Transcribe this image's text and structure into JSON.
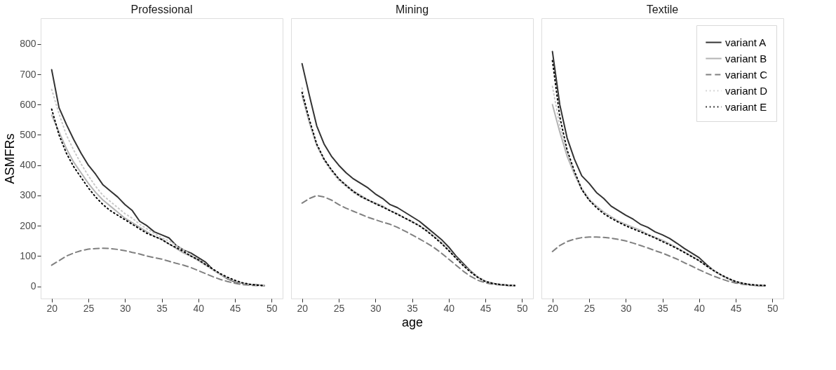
{
  "chart_data": [
    {
      "type": "line",
      "title": "Professional",
      "ylabel": "ASMFRs",
      "x": [
        20,
        21,
        22,
        23,
        24,
        25,
        26,
        27,
        28,
        29,
        30,
        31,
        32,
        33,
        34,
        35,
        36,
        37,
        38,
        39,
        40,
        41,
        42,
        43,
        44,
        45,
        46,
        47,
        48,
        49
      ],
      "xlim": [
        18.5,
        51.5
      ],
      "xticks": [
        20,
        25,
        30,
        35,
        40,
        45,
        50
      ],
      "ylim": [
        -40,
        885
      ],
      "yticks": [
        0,
        100,
        200,
        300,
        400,
        500,
        600,
        700,
        800
      ],
      "grid": false,
      "legend": false,
      "series": [
        {
          "color": "#333333",
          "line_style": "solid",
          "values": [
            715,
            590,
            535,
            485,
            440,
            400,
            370,
            335,
            315,
            295,
            270,
            250,
            215,
            200,
            180,
            170,
            160,
            135,
            120,
            110,
            95,
            80,
            55,
            40,
            25,
            15,
            10,
            7,
            5,
            3
          ]
        },
        {
          "color": "#b3b3b3",
          "line_style": "solid",
          "values": [
            565,
            510,
            455,
            410,
            375,
            340,
            310,
            285,
            265,
            245,
            225,
            210,
            195,
            180,
            165,
            155,
            140,
            125,
            110,
            100,
            85,
            70,
            55,
            40,
            27,
            17,
            10,
            6,
            4,
            3
          ]
        },
        {
          "color": "#808080",
          "line_style": "dashed",
          "values": [
            70,
            85,
            100,
            110,
            118,
            123,
            125,
            126,
            125,
            122,
            118,
            112,
            107,
            100,
            95,
            90,
            83,
            76,
            70,
            62,
            52,
            42,
            32,
            23,
            16,
            10,
            6,
            4,
            3,
            2
          ]
        },
        {
          "color": "#c8c8c8",
          "line_style": "dotted",
          "values": [
            650,
            570,
            500,
            450,
            405,
            365,
            330,
            300,
            280,
            260,
            240,
            225,
            205,
            190,
            175,
            160,
            150,
            135,
            120,
            105,
            90,
            72,
            55,
            40,
            28,
            18,
            11,
            7,
            4,
            3
          ]
        },
        {
          "color": "#000000",
          "line_style": "dotted",
          "values": [
            585,
            500,
            440,
            395,
            360,
            325,
            295,
            270,
            250,
            235,
            220,
            205,
            190,
            175,
            165,
            155,
            140,
            128,
            115,
            100,
            88,
            72,
            57,
            42,
            30,
            20,
            12,
            7,
            4,
            3
          ]
        }
      ]
    },
    {
      "type": "line",
      "title": "Mining",
      "xlabel": "age",
      "tick_labels": "x",
      "x": [
        20,
        21,
        22,
        23,
        24,
        25,
        26,
        27,
        28,
        29,
        30,
        31,
        32,
        33,
        34,
        35,
        36,
        37,
        38,
        39,
        40,
        41,
        42,
        43,
        44,
        45,
        46,
        47,
        48,
        49
      ],
      "xlim": [
        18.5,
        51.5
      ],
      "xticks": [
        20,
        25,
        30,
        35,
        40,
        45,
        50
      ],
      "ylim": [
        -40,
        885
      ],
      "grid": false,
      "legend": false,
      "series": [
        {
          "color": "#333333",
          "line_style": "solid",
          "values": [
            735,
            630,
            530,
            470,
            430,
            400,
            375,
            355,
            340,
            325,
            305,
            290,
            270,
            260,
            245,
            230,
            215,
            195,
            175,
            155,
            130,
            100,
            75,
            50,
            30,
            17,
            10,
            6,
            4,
            3
          ]
        },
        {
          "color": "#b3b3b3",
          "line_style": "solid",
          "values": [
            630,
            540,
            465,
            420,
            385,
            355,
            335,
            315,
            300,
            285,
            275,
            265,
            250,
            240,
            225,
            215,
            200,
            185,
            165,
            145,
            120,
            95,
            70,
            48,
            30,
            17,
            10,
            6,
            4,
            3
          ]
        },
        {
          "color": "#808080",
          "line_style": "dashed",
          "values": [
            275,
            290,
            300,
            295,
            285,
            270,
            258,
            248,
            238,
            228,
            220,
            212,
            205,
            195,
            183,
            170,
            157,
            143,
            128,
            110,
            90,
            70,
            50,
            33,
            20,
            12,
            7,
            5,
            3,
            2
          ]
        },
        {
          "color": "#c8c8c8",
          "line_style": "dotted",
          "values": [
            655,
            545,
            465,
            415,
            380,
            350,
            330,
            310,
            295,
            283,
            272,
            262,
            250,
            238,
            225,
            213,
            200,
            183,
            165,
            145,
            120,
            95,
            70,
            48,
            30,
            17,
            10,
            6,
            4,
            3
          ]
        },
        {
          "color": "#000000",
          "line_style": "dotted",
          "values": [
            640,
            550,
            470,
            420,
            385,
            355,
            333,
            313,
            297,
            285,
            273,
            262,
            250,
            238,
            226,
            213,
            200,
            183,
            163,
            142,
            118,
            93,
            68,
            47,
            29,
            16,
            10,
            6,
            4,
            3
          ]
        }
      ]
    },
    {
      "type": "line",
      "title": "Textile",
      "tick_labels": "x",
      "x": [
        20,
        21,
        22,
        23,
        24,
        25,
        26,
        27,
        28,
        29,
        30,
        31,
        32,
        33,
        34,
        35,
        36,
        37,
        38,
        39,
        40,
        41,
        42,
        43,
        44,
        45,
        46,
        47,
        48,
        49
      ],
      "xlim": [
        18.5,
        51.5
      ],
      "xticks": [
        20,
        25,
        30,
        35,
        40,
        45,
        50
      ],
      "ylim": [
        -40,
        885
      ],
      "grid": false,
      "legend": "top right",
      "series": [
        {
          "name": "variant A",
          "color": "#333333",
          "line_style": "solid",
          "values": [
            775,
            600,
            490,
            420,
            365,
            340,
            310,
            290,
            265,
            250,
            235,
            222,
            205,
            195,
            180,
            170,
            158,
            142,
            125,
            110,
            95,
            72,
            52,
            38,
            25,
            15,
            9,
            5,
            3,
            3
          ]
        },
        {
          "name": "variant B",
          "color": "#b3b3b3",
          "line_style": "solid",
          "values": [
            600,
            510,
            430,
            370,
            320,
            285,
            265,
            245,
            230,
            215,
            205,
            195,
            185,
            172,
            162,
            152,
            140,
            127,
            113,
            100,
            85,
            68,
            52,
            38,
            25,
            16,
            10,
            6,
            4,
            3
          ]
        },
        {
          "name": "variant C",
          "color": "#808080",
          "line_style": "dashed",
          "values": [
            115,
            135,
            148,
            156,
            161,
            163,
            163,
            162,
            159,
            155,
            150,
            143,
            135,
            127,
            118,
            110,
            100,
            90,
            78,
            67,
            55,
            44,
            34,
            25,
            17,
            11,
            7,
            4,
            3,
            2
          ]
        },
        {
          "name": "variant D",
          "color": "#c8c8c8",
          "line_style": "dotted",
          "values": [
            660,
            530,
            440,
            375,
            325,
            290,
            265,
            245,
            230,
            215,
            205,
            193,
            183,
            172,
            160,
            150,
            140,
            127,
            113,
            100,
            85,
            68,
            52,
            38,
            25,
            16,
            10,
            6,
            4,
            3
          ]
        },
        {
          "name": "variant E",
          "color": "#000000",
          "line_style": "dotted",
          "values": [
            745,
            560,
            450,
            380,
            320,
            285,
            260,
            240,
            225,
            212,
            200,
            190,
            180,
            170,
            160,
            148,
            137,
            125,
            112,
            98,
            85,
            68,
            52,
            38,
            26,
            16,
            10,
            6,
            4,
            3
          ]
        }
      ]
    }
  ]
}
